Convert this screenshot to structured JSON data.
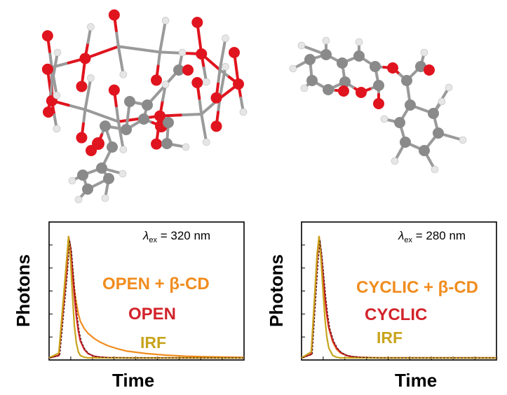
{
  "colors": {
    "open_cd": "#f08c1e",
    "open": "#d2232a",
    "irf": "#c8a41c",
    "dark": "#3a0d0d",
    "atom_c": "#8a8a8a",
    "atom_o": "#e0141e",
    "atom_h": "#e6e6e6",
    "bond": "#9a9a9a"
  },
  "molecules": [
    {
      "name": "open-flavonol-beta-cd-complex",
      "label": ""
    },
    {
      "name": "cyclic-flavonol",
      "label": ""
    }
  ],
  "chart_data": [
    {
      "type": "line",
      "title": "",
      "xlabel": "Time",
      "ylabel": "Photons",
      "annotation": {
        "lambda_symbol": "λ",
        "subscript": "ex",
        "text": " = 320 nm"
      },
      "xlim": [
        0,
        1
      ],
      "ylim": [
        0,
        1
      ],
      "x": [
        0.0,
        0.05,
        0.09,
        0.1,
        0.11,
        0.12,
        0.13,
        0.14,
        0.15,
        0.16,
        0.18,
        0.2,
        0.23,
        0.26,
        0.3,
        0.35,
        0.4,
        0.5,
        0.6,
        0.7,
        0.8,
        0.9,
        1.0
      ],
      "series": [
        {
          "name": "OPEN + β-CD",
          "color_key": "open_cd",
          "values": [
            0.0,
            0.02,
            0.7,
            0.98,
            0.88,
            0.72,
            0.56,
            0.45,
            0.36,
            0.3,
            0.24,
            0.2,
            0.16,
            0.13,
            0.1,
            0.075,
            0.055,
            0.035,
            0.022,
            0.014,
            0.009,
            0.006,
            0.004
          ]
        },
        {
          "name": "OPEN",
          "color_key": "open",
          "values": [
            0.0,
            0.02,
            0.72,
            0.99,
            0.9,
            0.7,
            0.5,
            0.34,
            0.22,
            0.14,
            0.07,
            0.035,
            0.014,
            0.006,
            0.002,
            0.001,
            0.0,
            0.0,
            0.0,
            0.0,
            0.0,
            0.0,
            0.0
          ]
        },
        {
          "name": "IRF",
          "color_key": "irf",
          "values": [
            0.0,
            0.04,
            0.8,
            0.99,
            0.8,
            0.5,
            0.26,
            0.12,
            0.05,
            0.02,
            0.005,
            0.0,
            0.0,
            0.0,
            0.0,
            0.0,
            0.0,
            0.0,
            0.0,
            0.0,
            0.0,
            0.0,
            0.0
          ]
        }
      ],
      "legend_order": [
        "OPEN + β-CD",
        "OPEN",
        "IRF"
      ]
    },
    {
      "type": "line",
      "title": "",
      "xlabel": "Time",
      "ylabel": "Photons",
      "annotation": {
        "lambda_symbol": "λ",
        "subscript": "ex",
        "text": " = 280 nm"
      },
      "xlim": [
        0,
        1
      ],
      "ylim": [
        0,
        1
      ],
      "x": [
        0.0,
        0.05,
        0.08,
        0.09,
        0.1,
        0.11,
        0.12,
        0.13,
        0.14,
        0.16,
        0.18,
        0.2,
        0.23,
        0.26,
        0.3,
        0.35,
        0.4,
        0.5,
        0.6,
        0.8,
        1.0
      ],
      "series": [
        {
          "name": "CYCLIC + β-CD",
          "color_key": "open_cd",
          "values": [
            0.0,
            0.03,
            0.8,
            0.99,
            0.85,
            0.66,
            0.48,
            0.34,
            0.24,
            0.13,
            0.07,
            0.04,
            0.02,
            0.01,
            0.005,
            0.002,
            0.0,
            0.0,
            0.0,
            0.0,
            0.0
          ]
        },
        {
          "name": "CYCLIC",
          "color_key": "open",
          "values": [
            0.0,
            0.03,
            0.8,
            0.99,
            0.86,
            0.68,
            0.5,
            0.36,
            0.25,
            0.14,
            0.08,
            0.045,
            0.02,
            0.01,
            0.004,
            0.001,
            0.0,
            0.0,
            0.0,
            0.0,
            0.0
          ]
        },
        {
          "name": "IRF",
          "color_key": "irf",
          "values": [
            0.0,
            0.05,
            0.85,
            0.99,
            0.8,
            0.55,
            0.32,
            0.17,
            0.08,
            0.02,
            0.005,
            0.0,
            0.0,
            0.0,
            0.0,
            0.0,
            0.0,
            0.0,
            0.0,
            0.0,
            0.0
          ]
        }
      ],
      "legend_order": [
        "CYCLIC + β-CD",
        "CYCLIC",
        "IRF"
      ]
    }
  ]
}
